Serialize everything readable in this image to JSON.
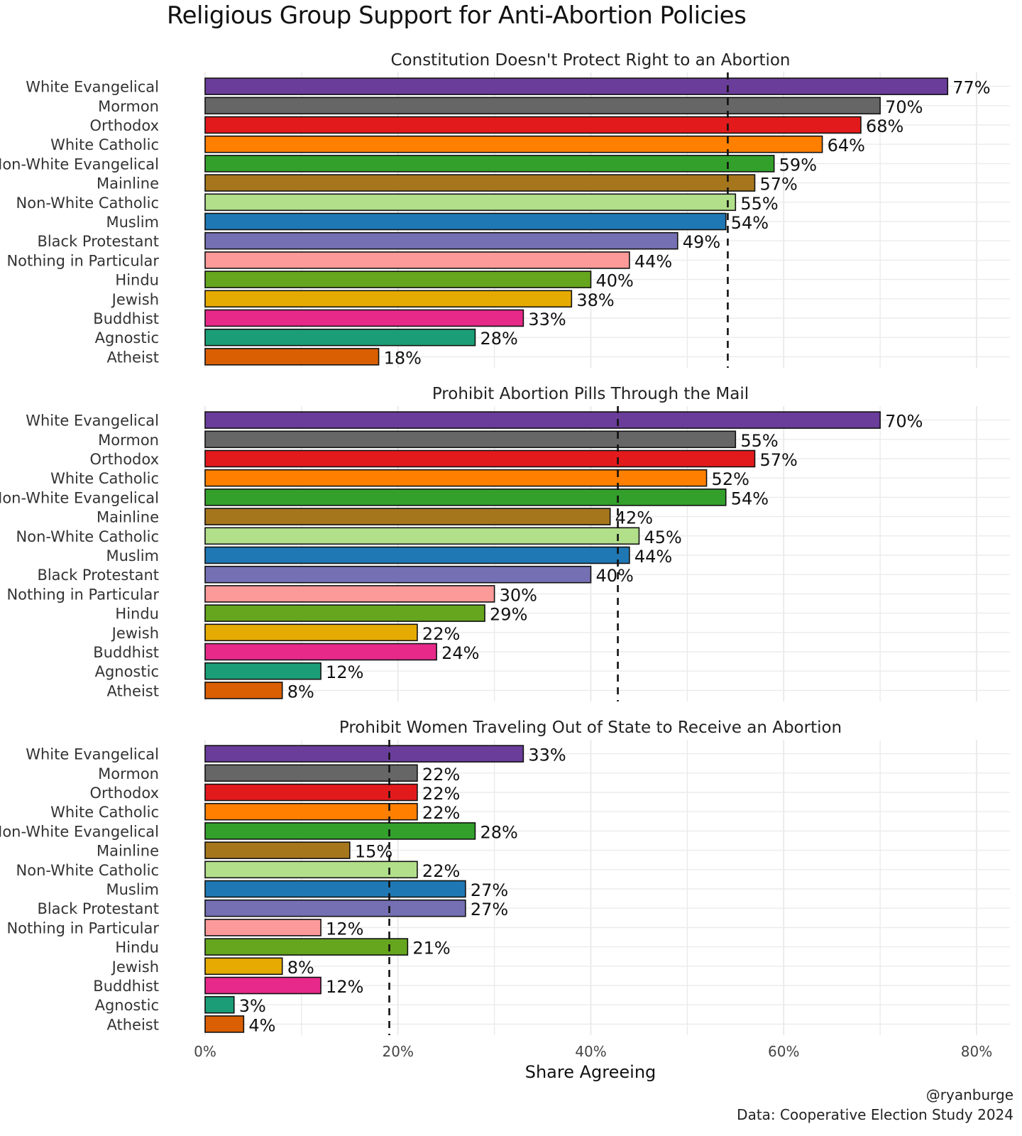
{
  "title": "Religious Group Support for Anti-Abortion Policies",
  "credit": {
    "handle": "@ryanburge",
    "source": "Data: Cooperative Election Study 2024"
  },
  "colors": {
    "White Evangelical": "#6a3d9a",
    "Mormon": "#666666",
    "Orthodox": "#e31a1c",
    "White Catholic": "#ff7f00",
    "Non-White Evangelical": "#33a02c",
    "Mainline": "#a6761d",
    "Non-White Catholic": "#b2df8a",
    "Muslim": "#1f78b4",
    "Black Protestant": "#7570b3",
    "Nothing in Particular": "#fb9a99",
    "Hindu": "#66a61e",
    "Jewish": "#e6ab02",
    "Buddhist": "#e7298a",
    "Agnostic": "#1b9e77",
    "Atheist": "#d95f02"
  },
  "chart_data": {
    "type": "bar",
    "orientation": "horizontal",
    "xlabel": "Share Agreeing",
    "xlim": [
      0,
      0.8
    ],
    "xticks": [
      0,
      0.2,
      0.4,
      0.6,
      0.8
    ],
    "xtick_labels": [
      "0%",
      "20%",
      "40%",
      "60%",
      "80%"
    ],
    "categories": [
      "White Evangelical",
      "Mormon",
      "Orthodox",
      "White Catholic",
      "Non-White Evangelical",
      "Mainline",
      "Non-White Catholic",
      "Muslim",
      "Black Protestant",
      "Nothing in Particular",
      "Hindu",
      "Jewish",
      "Buddhist",
      "Agnostic",
      "Atheist"
    ],
    "panels": [
      {
        "title": "Constitution Doesn't Protect Right to an Abortion",
        "values": [
          0.77,
          0.7,
          0.68,
          0.64,
          0.59,
          0.57,
          0.55,
          0.54,
          0.49,
          0.44,
          0.4,
          0.38,
          0.33,
          0.28,
          0.18
        ],
        "labels": [
          "77%",
          "70%",
          "68%",
          "64%",
          "59%",
          "57%",
          "55%",
          "54%",
          "49%",
          "44%",
          "40%",
          "38%",
          "33%",
          "28%",
          "18%"
        ],
        "reference_line": 0.542
      },
      {
        "title": "Prohibit Abortion Pills Through the Mail",
        "values": [
          0.7,
          0.55,
          0.57,
          0.52,
          0.54,
          0.42,
          0.45,
          0.44,
          0.4,
          0.3,
          0.29,
          0.22,
          0.24,
          0.12,
          0.08
        ],
        "labels": [
          "70%",
          "55%",
          "57%",
          "52%",
          "54%",
          "42%",
          "45%",
          "44%",
          "40%",
          "30%",
          "29%",
          "22%",
          "24%",
          "12%",
          "8%"
        ],
        "reference_line": 0.428
      },
      {
        "title": "Prohibit Women Traveling Out of State to Receive an Abortion",
        "values": [
          0.33,
          0.22,
          0.22,
          0.22,
          0.28,
          0.15,
          0.22,
          0.27,
          0.27,
          0.12,
          0.21,
          0.08,
          0.12,
          0.03,
          0.04
        ],
        "labels": [
          "33%",
          "22%",
          "22%",
          "22%",
          "28%",
          "15%",
          "22%",
          "27%",
          "27%",
          "12%",
          "21%",
          "8%",
          "12%",
          "3%",
          "4%"
        ],
        "reference_line": 0.191
      }
    ]
  }
}
